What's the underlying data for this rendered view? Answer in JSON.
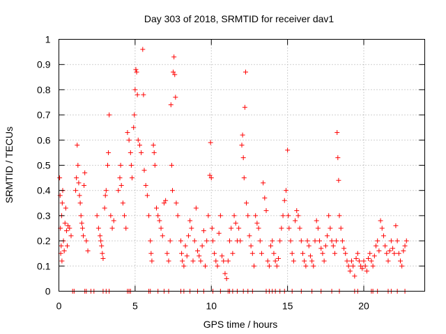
{
  "chart_data": {
    "type": "scatter",
    "title": "Day 303 of 2018, SRMTID for receiver dav1",
    "xlabel": "GPS time / hours",
    "ylabel": "SRMTID / TECUs",
    "xlim": [
      0,
      24
    ],
    "ylim": [
      0,
      1
    ],
    "xticks": [
      0,
      5,
      10,
      15,
      20
    ],
    "xtick_labels": [
      "0",
      "5",
      "10",
      "15",
      "20"
    ],
    "yticks": [
      0,
      0.1,
      0.2,
      0.3,
      0.4,
      0.5,
      0.6,
      0.7,
      0.8,
      0.9,
      1
    ],
    "ytick_labels": [
      "0",
      "0.1",
      "0.2",
      "0.3",
      "0.4",
      "0.5",
      "0.6",
      "0.7",
      "0.8",
      "0.9",
      "1"
    ],
    "grid": true,
    "marker": "plus",
    "color": "#ff0000",
    "series": [
      {
        "name": "dav1",
        "points": [
          [
            0.05,
            0.45
          ],
          [
            0.08,
            0.38
          ],
          [
            0.1,
            0.25
          ],
          [
            0.12,
            0.15
          ],
          [
            0.15,
            0.18
          ],
          [
            0.18,
            0.3
          ],
          [
            0.2,
            0.12
          ],
          [
            0.22,
            0.35
          ],
          [
            0.25,
            0.4
          ],
          [
            0.3,
            0.2
          ],
          [
            0.35,
            0.16
          ],
          [
            0.4,
            0.27
          ],
          [
            0.45,
            0.33
          ],
          [
            0.5,
            0.24
          ],
          [
            0.55,
            0.18
          ],
          [
            0.6,
            0.26
          ],
          [
            0.7,
            0.25
          ],
          [
            0.8,
            0.22
          ],
          [
            1.1,
            0.4
          ],
          [
            1.15,
            0.45
          ],
          [
            1.2,
            0.58
          ],
          [
            1.25,
            0.5
          ],
          [
            1.3,
            0.43
          ],
          [
            1.35,
            0.38
          ],
          [
            1.4,
            0.35
          ],
          [
            1.45,
            0.3
          ],
          [
            1.5,
            0.27
          ],
          [
            1.55,
            0.25
          ],
          [
            1.6,
            0.22
          ],
          [
            1.65,
            0.42
          ],
          [
            1.7,
            0.47
          ],
          [
            1.8,
            0.2
          ],
          [
            1.9,
            0.16
          ],
          [
            2.5,
            0.3
          ],
          [
            2.6,
            0.25
          ],
          [
            2.7,
            0.22
          ],
          [
            2.75,
            0.2
          ],
          [
            2.8,
            0.18
          ],
          [
            2.85,
            0.15
          ],
          [
            2.9,
            0.13
          ],
          [
            3.0,
            0.33
          ],
          [
            3.05,
            0.38
          ],
          [
            3.1,
            0.4
          ],
          [
            3.2,
            0.5
          ],
          [
            3.25,
            0.55
          ],
          [
            3.3,
            0.7
          ],
          [
            3.4,
            0.3
          ],
          [
            3.5,
            0.25
          ],
          [
            3.6,
            0.28
          ],
          [
            3.9,
            0.4
          ],
          [
            4.0,
            0.45
          ],
          [
            4.05,
            0.5
          ],
          [
            4.1,
            0.42
          ],
          [
            4.2,
            0.35
          ],
          [
            4.3,
            0.3
          ],
          [
            4.4,
            0.25
          ],
          [
            4.5,
            0.63
          ],
          [
            4.6,
            0.6
          ],
          [
            4.7,
            0.55
          ],
          [
            4.75,
            0.5
          ],
          [
            4.8,
            0.45
          ],
          [
            4.9,
            0.65
          ],
          [
            4.95,
            0.7
          ],
          [
            5.0,
            0.8
          ],
          [
            5.05,
            0.88
          ],
          [
            5.1,
            0.87
          ],
          [
            5.15,
            0.78
          ],
          [
            5.2,
            0.6
          ],
          [
            5.3,
            0.58
          ],
          [
            5.4,
            0.55
          ],
          [
            5.5,
            0.96
          ],
          [
            5.55,
            0.78
          ],
          [
            5.6,
            0.48
          ],
          [
            5.7,
            0.42
          ],
          [
            5.8,
            0.38
          ],
          [
            5.9,
            0.3
          ],
          [
            6.0,
            0.2
          ],
          [
            6.05,
            0.15
          ],
          [
            6.1,
            0.12
          ],
          [
            6.2,
            0.58
          ],
          [
            6.25,
            0.55
          ],
          [
            6.3,
            0.5
          ],
          [
            6.4,
            0.33
          ],
          [
            6.5,
            0.3
          ],
          [
            6.6,
            0.28
          ],
          [
            6.7,
            0.25
          ],
          [
            6.8,
            0.22
          ],
          [
            6.9,
            0.35
          ],
          [
            7.0,
            0.36
          ],
          [
            7.1,
            0.15
          ],
          [
            7.2,
            0.12
          ],
          [
            7.3,
            0.2
          ],
          [
            7.35,
            0.74
          ],
          [
            7.4,
            0.5
          ],
          [
            7.45,
            0.4
          ],
          [
            7.5,
            0.87
          ],
          [
            7.55,
            0.93
          ],
          [
            7.6,
            0.86
          ],
          [
            7.65,
            0.77
          ],
          [
            7.7,
            0.35
          ],
          [
            7.8,
            0.3
          ],
          [
            8.0,
            0.2
          ],
          [
            8.05,
            0.15
          ],
          [
            8.1,
            0.12
          ],
          [
            8.2,
            0.1
          ],
          [
            8.3,
            0.18
          ],
          [
            8.4,
            0.14
          ],
          [
            8.5,
            0.22
          ],
          [
            8.6,
            0.28
          ],
          [
            8.7,
            0.25
          ],
          [
            8.8,
            0.12
          ],
          [
            8.9,
            0.2
          ],
          [
            9.0,
            0.33
          ],
          [
            9.1,
            0.16
          ],
          [
            9.2,
            0.14
          ],
          [
            9.3,
            0.12
          ],
          [
            9.4,
            0.18
          ],
          [
            9.5,
            0.24
          ],
          [
            9.6,
            0.1
          ],
          [
            9.7,
            0.2
          ],
          [
            9.8,
            0.3
          ],
          [
            9.9,
            0.46
          ],
          [
            9.95,
            0.59
          ],
          [
            10.0,
            0.45
          ],
          [
            10.05,
            0.25
          ],
          [
            10.1,
            0.2
          ],
          [
            10.2,
            0.15
          ],
          [
            10.3,
            0.12
          ],
          [
            10.4,
            0.1
          ],
          [
            10.5,
            0.23
          ],
          [
            10.6,
            0.3
          ],
          [
            10.7,
            0.14
          ],
          [
            10.8,
            0.12
          ],
          [
            10.9,
            0.07
          ],
          [
            11.0,
            0.05
          ],
          [
            11.1,
            0.12
          ],
          [
            11.2,
            0.2
          ],
          [
            11.3,
            0.25
          ],
          [
            11.4,
            0.15
          ],
          [
            11.5,
            0.3
          ],
          [
            11.6,
            0.27
          ],
          [
            11.7,
            0.2
          ],
          [
            11.8,
            0.25
          ],
          [
            11.9,
            0.2
          ],
          [
            12.0,
            0.58
          ],
          [
            12.05,
            0.62
          ],
          [
            12.1,
            0.53
          ],
          [
            12.15,
            0.45
          ],
          [
            12.2,
            0.73
          ],
          [
            12.25,
            0.87
          ],
          [
            12.3,
            0.35
          ],
          [
            12.4,
            0.3
          ],
          [
            12.5,
            0.22
          ],
          [
            12.6,
            0.18
          ],
          [
            12.7,
            0.15
          ],
          [
            12.8,
            0.1
          ],
          [
            12.9,
            0.3
          ],
          [
            13.0,
            0.27
          ],
          [
            13.1,
            0.25
          ],
          [
            13.2,
            0.2
          ],
          [
            13.3,
            0.15
          ],
          [
            13.4,
            0.43
          ],
          [
            13.5,
            0.37
          ],
          [
            13.6,
            0.32
          ],
          [
            13.7,
            0.12
          ],
          [
            13.8,
            0.1
          ],
          [
            13.9,
            0.18
          ],
          [
            14.0,
            0.2
          ],
          [
            14.1,
            0.15
          ],
          [
            14.2,
            0.12
          ],
          [
            14.3,
            0.1
          ],
          [
            14.4,
            0.13
          ],
          [
            14.5,
            0.2
          ],
          [
            14.6,
            0.25
          ],
          [
            14.7,
            0.3
          ],
          [
            14.8,
            0.36
          ],
          [
            14.9,
            0.4
          ],
          [
            15.0,
            0.56
          ],
          [
            15.05,
            0.3
          ],
          [
            15.1,
            0.25
          ],
          [
            15.2,
            0.2
          ],
          [
            15.3,
            0.15
          ],
          [
            15.4,
            0.12
          ],
          [
            15.5,
            0.28
          ],
          [
            15.6,
            0.32
          ],
          [
            15.7,
            0.3
          ],
          [
            15.8,
            0.25
          ],
          [
            15.9,
            0.2
          ],
          [
            16.0,
            0.15
          ],
          [
            16.1,
            0.12
          ],
          [
            16.2,
            0.1
          ],
          [
            16.3,
            0.2
          ],
          [
            16.4,
            0.18
          ],
          [
            16.5,
            0.14
          ],
          [
            16.6,
            0.12
          ],
          [
            16.7,
            0.1
          ],
          [
            16.8,
            0.2
          ],
          [
            16.9,
            0.28
          ],
          [
            17.0,
            0.25
          ],
          [
            17.1,
            0.2
          ],
          [
            17.2,
            0.17
          ],
          [
            17.3,
            0.15
          ],
          [
            17.4,
            0.12
          ],
          [
            17.5,
            0.18
          ],
          [
            17.6,
            0.22
          ],
          [
            17.7,
            0.3
          ],
          [
            17.8,
            0.25
          ],
          [
            17.9,
            0.2
          ],
          [
            18.0,
            0.18
          ],
          [
            18.1,
            0.15
          ],
          [
            18.2,
            0.2
          ],
          [
            18.25,
            0.63
          ],
          [
            18.3,
            0.53
          ],
          [
            18.35,
            0.44
          ],
          [
            18.4,
            0.3
          ],
          [
            18.5,
            0.25
          ],
          [
            18.6,
            0.2
          ],
          [
            18.7,
            0.17
          ],
          [
            18.8,
            0.15
          ],
          [
            18.9,
            0.12
          ],
          [
            19.0,
            0.1
          ],
          [
            19.1,
            0.08
          ],
          [
            19.2,
            0.12
          ],
          [
            19.3,
            0.1
          ],
          [
            19.4,
            0.06
          ],
          [
            19.5,
            0.13
          ],
          [
            19.6,
            0.15
          ],
          [
            19.7,
            0.12
          ],
          [
            19.8,
            0.1
          ],
          [
            19.9,
            0.09
          ],
          [
            20.0,
            0.12
          ],
          [
            20.1,
            0.1
          ],
          [
            20.2,
            0.08
          ],
          [
            20.3,
            0.13
          ],
          [
            20.4,
            0.15
          ],
          [
            20.5,
            0.12
          ],
          [
            20.6,
            0.1
          ],
          [
            20.7,
            0.14
          ],
          [
            20.8,
            0.18
          ],
          [
            20.9,
            0.2
          ],
          [
            21.0,
            0.16
          ],
          [
            21.1,
            0.28
          ],
          [
            21.2,
            0.25
          ],
          [
            21.3,
            0.22
          ],
          [
            21.4,
            0.18
          ],
          [
            21.5,
            0.15
          ],
          [
            21.6,
            0.12
          ],
          [
            21.7,
            0.16
          ],
          [
            21.8,
            0.2
          ],
          [
            21.9,
            0.17
          ],
          [
            22.0,
            0.15
          ],
          [
            22.1,
            0.26
          ],
          [
            22.2,
            0.2
          ],
          [
            22.3,
            0.15
          ],
          [
            22.4,
            0.12
          ],
          [
            22.5,
            0.1
          ],
          [
            22.6,
            0.16
          ],
          [
            22.7,
            0.18
          ],
          [
            22.8,
            0.2
          ],
          [
            0.9,
            0
          ],
          [
            1.0,
            0
          ],
          [
            1.7,
            0
          ],
          [
            1.8,
            0
          ],
          [
            2.1,
            0
          ],
          [
            2.3,
            0
          ],
          [
            2.9,
            0
          ],
          [
            3.1,
            0
          ],
          [
            3.3,
            0
          ],
          [
            4.5,
            0
          ],
          [
            4.6,
            0
          ],
          [
            4.7,
            0
          ],
          [
            5.9,
            0
          ],
          [
            6.0,
            0
          ],
          [
            6.5,
            0
          ],
          [
            6.9,
            0
          ],
          [
            7.2,
            0
          ],
          [
            8.0,
            0
          ],
          [
            8.2,
            0
          ],
          [
            8.6,
            0
          ],
          [
            9.1,
            0
          ],
          [
            9.5,
            0
          ],
          [
            10.1,
            0
          ],
          [
            10.6,
            0
          ],
          [
            11.1,
            0
          ],
          [
            11.2,
            0
          ],
          [
            11.4,
            0
          ],
          [
            11.7,
            0
          ],
          [
            12.1,
            0
          ],
          [
            12.4,
            0
          ],
          [
            12.7,
            0
          ],
          [
            13.6,
            0
          ],
          [
            13.8,
            0
          ],
          [
            14.0,
            0
          ],
          [
            14.2,
            0
          ],
          [
            14.5,
            0
          ],
          [
            14.8,
            0
          ],
          [
            15.3,
            0
          ],
          [
            15.9,
            0
          ],
          [
            16.6,
            0
          ],
          [
            17.2,
            0
          ],
          [
            17.9,
            0
          ],
          [
            18.4,
            0
          ],
          [
            19.4,
            0
          ],
          [
            19.6,
            0
          ],
          [
            20.5,
            0
          ],
          [
            20.6,
            0
          ],
          [
            20.9,
            0
          ],
          [
            21.6,
            0
          ],
          [
            21.8,
            0
          ],
          [
            22.2,
            0
          ],
          [
            22.7,
            0
          ]
        ]
      }
    ]
  }
}
